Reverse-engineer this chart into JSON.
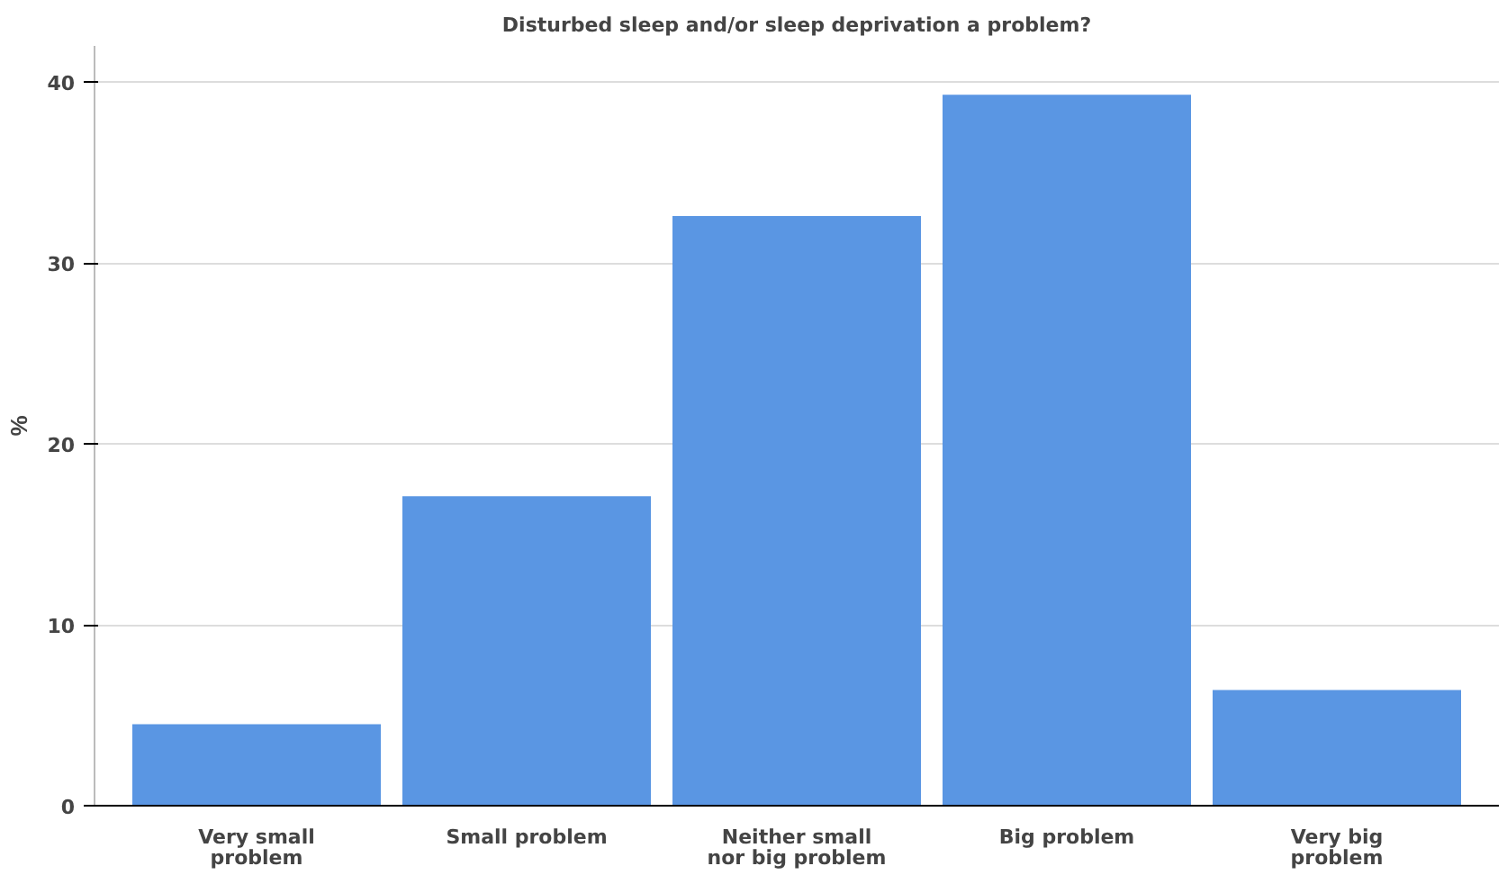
{
  "chart_data": {
    "type": "bar",
    "title": "Disturbed sleep and/or sleep deprivation a problem?",
    "ylabel": "%",
    "categories": [
      "Very small problem",
      "Small problem",
      "Neither small nor big problem",
      "Big problem",
      "Very big problem"
    ],
    "values": [
      4.5,
      17.1,
      32.6,
      39.3,
      6.4
    ],
    "color": "#5a96e3",
    "ylim": [
      0,
      42
    ],
    "yticks": [
      0,
      10,
      20,
      30,
      40
    ],
    "grid": "y"
  }
}
